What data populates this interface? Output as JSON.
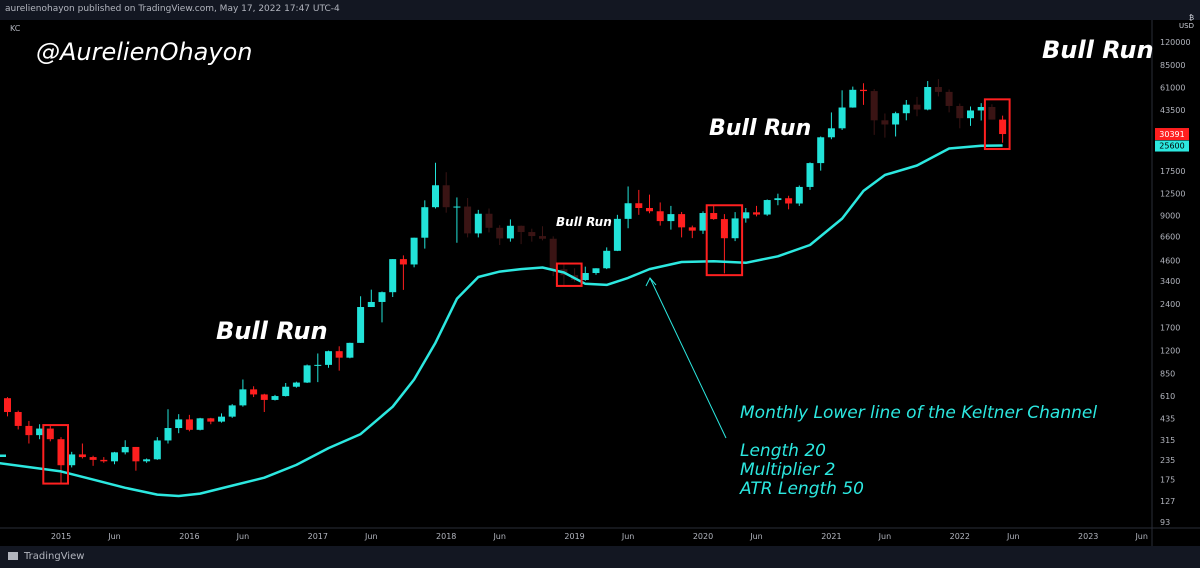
{
  "header": {
    "published": "aurelienohayon published on TradingView.com, May 17, 2022 17:47 UTC-4",
    "symbol": "KC"
  },
  "axis": {
    "currency_top": "₿",
    "currency": "USD"
  },
  "handle": "@AurelienOhayon",
  "annotations": {
    "top_right": "Bull Run",
    "run_2020": "Bull Run",
    "run_2019": "Bull Run",
    "run_2016": "Bull Run"
  },
  "keltner_note": {
    "line1": "Monthly Lower line of the Keltner Channel",
    "line2": "Length 20",
    "line3": "Multiplier 2",
    "line4": "ATR Length 50"
  },
  "footer": {
    "brand": "TradingView"
  },
  "colors": {
    "up": "#22e3d9",
    "down": "#ff1f1f",
    "faded_down": "#3a1414",
    "keltner_line": "#2ce8e0",
    "box": "#ff2020",
    "last_price_tag": "#ff1f1f",
    "keltner_tag": "#2ce8e0"
  },
  "chart_data": {
    "type": "candlestick",
    "scale": "log",
    "y_ticks": [
      120000,
      85000,
      61000,
      43500,
      30391,
      25600,
      17500,
      12500,
      9000,
      6600,
      4600,
      3400,
      2400,
      1700,
      1200,
      850,
      610,
      435,
      315,
      235,
      175,
      127,
      93
    ],
    "y_tick_labels": [
      "120000",
      "85000",
      "61000",
      "43500",
      "",
      "",
      "17500",
      "12500",
      "9000",
      "6600",
      "4600",
      "3400",
      "2400",
      "1700",
      "1200",
      "850",
      "610",
      "435",
      "315",
      "235",
      "175",
      "127",
      "93"
    ],
    "x_tick_labels": [
      "2015",
      "Jun",
      "2016",
      "Jun",
      "2017",
      "Jun",
      "2018",
      "Jun",
      "2019",
      "Jun",
      "2020",
      "Jun",
      "2021",
      "Jun",
      "2022",
      "Jun",
      "2023",
      "Jun"
    ],
    "x_tick_dates": [
      "2015-01",
      "2015-06",
      "2016-01",
      "2016-06",
      "2017-01",
      "2017-06",
      "2018-01",
      "2018-06",
      "2019-01",
      "2019-06",
      "2020-01",
      "2020-06",
      "2021-01",
      "2021-06",
      "2022-01",
      "2022-06",
      "2023-01",
      "2023-06"
    ],
    "last_price_label": "30391",
    "keltner_label": "25600",
    "candles": [
      {
        "date": "2014-06",
        "o": 640,
        "h": 680,
        "l": 560,
        "c": 600
      },
      {
        "date": "2014-07",
        "o": 600,
        "h": 640,
        "l": 570,
        "c": 590
      },
      {
        "date": "2014-08",
        "o": 590,
        "h": 600,
        "l": 450,
        "c": 480
      },
      {
        "date": "2014-09",
        "o": 480,
        "h": 490,
        "l": 370,
        "c": 390
      },
      {
        "date": "2014-10",
        "o": 390,
        "h": 420,
        "l": 300,
        "c": 340
      },
      {
        "date": "2014-11",
        "o": 340,
        "h": 400,
        "l": 320,
        "c": 375
      },
      {
        "date": "2014-12",
        "o": 375,
        "h": 390,
        "l": 310,
        "c": 320
      },
      {
        "date": "2015-01",
        "o": 320,
        "h": 330,
        "l": 165,
        "c": 217
      },
      {
        "date": "2015-02",
        "o": 217,
        "h": 265,
        "l": 210,
        "c": 255
      },
      {
        "date": "2015-03",
        "o": 255,
        "h": 300,
        "l": 240,
        "c": 245
      },
      {
        "date": "2015-04",
        "o": 245,
        "h": 250,
        "l": 215,
        "c": 235
      },
      {
        "date": "2015-05",
        "o": 235,
        "h": 245,
        "l": 225,
        "c": 230
      },
      {
        "date": "2015-06",
        "o": 230,
        "h": 265,
        "l": 220,
        "c": 263
      },
      {
        "date": "2015-07",
        "o": 263,
        "h": 315,
        "l": 255,
        "c": 285
      },
      {
        "date": "2015-08",
        "o": 285,
        "h": 285,
        "l": 200,
        "c": 230
      },
      {
        "date": "2015-09",
        "o": 230,
        "h": 240,
        "l": 225,
        "c": 237
      },
      {
        "date": "2015-10",
        "o": 237,
        "h": 330,
        "l": 235,
        "c": 314
      },
      {
        "date": "2015-11",
        "o": 314,
        "h": 500,
        "l": 300,
        "c": 378
      },
      {
        "date": "2015-12",
        "o": 378,
        "h": 465,
        "l": 350,
        "c": 430
      },
      {
        "date": "2016-01",
        "o": 430,
        "h": 460,
        "l": 360,
        "c": 368
      },
      {
        "date": "2016-02",
        "o": 368,
        "h": 440,
        "l": 365,
        "c": 437
      },
      {
        "date": "2016-03",
        "o": 437,
        "h": 440,
        "l": 400,
        "c": 416
      },
      {
        "date": "2016-04",
        "o": 416,
        "h": 470,
        "l": 410,
        "c": 448
      },
      {
        "date": "2016-05",
        "o": 448,
        "h": 540,
        "l": 440,
        "c": 530
      },
      {
        "date": "2016-06",
        "o": 530,
        "h": 780,
        "l": 520,
        "c": 673
      },
      {
        "date": "2016-07",
        "o": 673,
        "h": 705,
        "l": 600,
        "c": 624
      },
      {
        "date": "2016-08",
        "o": 624,
        "h": 630,
        "l": 480,
        "c": 575
      },
      {
        "date": "2016-09",
        "o": 575,
        "h": 620,
        "l": 570,
        "c": 609
      },
      {
        "date": "2016-10",
        "o": 609,
        "h": 740,
        "l": 605,
        "c": 700
      },
      {
        "date": "2016-11",
        "o": 700,
        "h": 755,
        "l": 690,
        "c": 745
      },
      {
        "date": "2016-12",
        "o": 745,
        "h": 975,
        "l": 740,
        "c": 963
      },
      {
        "date": "2017-01",
        "o": 963,
        "h": 1150,
        "l": 750,
        "c": 970
      },
      {
        "date": "2017-02",
        "o": 970,
        "h": 1200,
        "l": 930,
        "c": 1190
      },
      {
        "date": "2017-03",
        "o": 1190,
        "h": 1280,
        "l": 890,
        "c": 1080
      },
      {
        "date": "2017-04",
        "o": 1080,
        "h": 1350,
        "l": 1070,
        "c": 1347
      },
      {
        "date": "2017-05",
        "o": 1347,
        "h": 2700,
        "l": 1345,
        "c": 2300
      },
      {
        "date": "2017-06",
        "o": 2300,
        "h": 2980,
        "l": 2300,
        "c": 2480
      },
      {
        "date": "2017-07",
        "o": 2480,
        "h": 2900,
        "l": 1830,
        "c": 2870
      },
      {
        "date": "2017-08",
        "o": 2870,
        "h": 4700,
        "l": 2670,
        "c": 4700
      },
      {
        "date": "2017-09",
        "o": 4700,
        "h": 4970,
        "l": 2970,
        "c": 4340
      },
      {
        "date": "2017-10",
        "o": 4340,
        "h": 6470,
        "l": 4160,
        "c": 6470
      },
      {
        "date": "2017-11",
        "o": 6470,
        "h": 11300,
        "l": 5500,
        "c": 10200
      },
      {
        "date": "2017-12",
        "o": 10200,
        "h": 19800,
        "l": 10000,
        "c": 14150
      },
      {
        "date": "2018-01",
        "o": 14150,
        "h": 17200,
        "l": 9400,
        "c": 10200
      },
      {
        "date": "2018-02",
        "o": 10200,
        "h": 11800,
        "l": 6000,
        "c": 10300
      },
      {
        "date": "2018-03",
        "o": 10300,
        "h": 11700,
        "l": 6500,
        "c": 6900
      },
      {
        "date": "2018-04",
        "o": 6900,
        "h": 9800,
        "l": 6500,
        "c": 9250
      },
      {
        "date": "2018-05",
        "o": 9250,
        "h": 10000,
        "l": 7000,
        "c": 7500
      },
      {
        "date": "2018-06",
        "o": 7500,
        "h": 7800,
        "l": 5800,
        "c": 6400
      },
      {
        "date": "2018-07",
        "o": 6400,
        "h": 8500,
        "l": 6100,
        "c": 7730
      },
      {
        "date": "2018-08",
        "o": 7730,
        "h": 7760,
        "l": 5880,
        "c": 7040
      },
      {
        "date": "2018-09",
        "o": 7040,
        "h": 7400,
        "l": 6100,
        "c": 6630
      },
      {
        "date": "2018-10",
        "o": 6630,
        "h": 7680,
        "l": 6220,
        "c": 6370
      },
      {
        "date": "2018-11",
        "o": 6370,
        "h": 6600,
        "l": 3650,
        "c": 4040
      },
      {
        "date": "2018-12",
        "o": 4040,
        "h": 4360,
        "l": 3150,
        "c": 3700
      },
      {
        "date": "2019-01",
        "o": 3700,
        "h": 4100,
        "l": 3350,
        "c": 3440
      },
      {
        "date": "2019-02",
        "o": 3440,
        "h": 4200,
        "l": 3400,
        "c": 3820
      },
      {
        "date": "2019-03",
        "o": 3820,
        "h": 4100,
        "l": 3720,
        "c": 4100
      },
      {
        "date": "2019-04",
        "o": 4100,
        "h": 5600,
        "l": 4050,
        "c": 5320
      },
      {
        "date": "2019-05",
        "o": 5320,
        "h": 9100,
        "l": 5300,
        "c": 8570
      },
      {
        "date": "2019-06",
        "o": 8570,
        "h": 13900,
        "l": 7450,
        "c": 10820
      },
      {
        "date": "2019-07",
        "o": 10820,
        "h": 13200,
        "l": 9100,
        "c": 10080
      },
      {
        "date": "2019-08",
        "o": 10080,
        "h": 12300,
        "l": 9320,
        "c": 9600
      },
      {
        "date": "2019-09",
        "o": 9600,
        "h": 10950,
        "l": 7750,
        "c": 8290
      },
      {
        "date": "2019-10",
        "o": 8290,
        "h": 10400,
        "l": 7300,
        "c": 9200
      },
      {
        "date": "2019-11",
        "o": 9200,
        "h": 9500,
        "l": 6500,
        "c": 7550
      },
      {
        "date": "2019-12",
        "o": 7550,
        "h": 7750,
        "l": 6430,
        "c": 7190
      },
      {
        "date": "2020-01",
        "o": 7190,
        "h": 9580,
        "l": 6850,
        "c": 9350
      },
      {
        "date": "2020-02",
        "o": 9350,
        "h": 10500,
        "l": 8450,
        "c": 8540
      },
      {
        "date": "2020-03",
        "o": 8540,
        "h": 9200,
        "l": 3800,
        "c": 6420
      },
      {
        "date": "2020-04",
        "o": 6420,
        "h": 9480,
        "l": 6150,
        "c": 8630
      },
      {
        "date": "2020-05",
        "o": 8630,
        "h": 10080,
        "l": 8100,
        "c": 9450
      },
      {
        "date": "2020-06",
        "o": 9450,
        "h": 10400,
        "l": 8900,
        "c": 9140
      },
      {
        "date": "2020-07",
        "o": 9140,
        "h": 11450,
        "l": 8970,
        "c": 11350
      },
      {
        "date": "2020-08",
        "o": 11350,
        "h": 12480,
        "l": 10500,
        "c": 11660
      },
      {
        "date": "2020-09",
        "o": 11660,
        "h": 12100,
        "l": 9880,
        "c": 10780
      },
      {
        "date": "2020-10",
        "o": 10780,
        "h": 14100,
        "l": 10400,
        "c": 13800
      },
      {
        "date": "2020-11",
        "o": 13800,
        "h": 19900,
        "l": 13200,
        "c": 19700
      },
      {
        "date": "2020-12",
        "o": 19700,
        "h": 29300,
        "l": 17600,
        "c": 28950
      },
      {
        "date": "2021-01",
        "o": 28950,
        "h": 41950,
        "l": 28130,
        "c": 33100
      },
      {
        "date": "2021-02",
        "o": 33100,
        "h": 58350,
        "l": 32300,
        "c": 45140
      },
      {
        "date": "2021-03",
        "o": 45140,
        "h": 61700,
        "l": 45000,
        "c": 58800
      },
      {
        "date": "2021-04",
        "o": 58800,
        "h": 64850,
        "l": 47000,
        "c": 57700
      },
      {
        "date": "2021-05",
        "o": 57700,
        "h": 59500,
        "l": 30000,
        "c": 37300
      },
      {
        "date": "2021-06",
        "o": 37300,
        "h": 41300,
        "l": 28800,
        "c": 35040
      },
      {
        "date": "2021-07",
        "o": 35040,
        "h": 42400,
        "l": 29300,
        "c": 41460
      },
      {
        "date": "2021-08",
        "o": 41460,
        "h": 50500,
        "l": 37300,
        "c": 47100
      },
      {
        "date": "2021-09",
        "o": 47100,
        "h": 52900,
        "l": 39600,
        "c": 43800
      },
      {
        "date": "2021-10",
        "o": 43800,
        "h": 67000,
        "l": 43300,
        "c": 61300
      },
      {
        "date": "2021-11",
        "o": 61300,
        "h": 69000,
        "l": 53300,
        "c": 57000
      },
      {
        "date": "2021-12",
        "o": 57000,
        "h": 59100,
        "l": 42000,
        "c": 46200
      },
      {
        "date": "2022-01",
        "o": 46200,
        "h": 47900,
        "l": 33100,
        "c": 38500
      },
      {
        "date": "2022-02",
        "o": 38500,
        "h": 45800,
        "l": 34300,
        "c": 43200
      },
      {
        "date": "2022-03",
        "o": 43200,
        "h": 48200,
        "l": 37200,
        "c": 45500
      },
      {
        "date": "2022-04",
        "o": 45500,
        "h": 47450,
        "l": 37700,
        "c": 37700
      },
      {
        "date": "2022-05",
        "o": 37700,
        "h": 40000,
        "l": 26700,
        "c": 30391
      }
    ],
    "keltner_lower": [
      {
        "date": "2014-01",
        "v": 250
      },
      {
        "date": "2014-07",
        "v": 225
      },
      {
        "date": "2015-01",
        "v": 198
      },
      {
        "date": "2015-04",
        "v": 175
      },
      {
        "date": "2015-07",
        "v": 155
      },
      {
        "date": "2015-10",
        "v": 140
      },
      {
        "date": "2015-12",
        "v": 137
      },
      {
        "date": "2016-02",
        "v": 142
      },
      {
        "date": "2016-05",
        "v": 160
      },
      {
        "date": "2016-08",
        "v": 180
      },
      {
        "date": "2016-11",
        "v": 218
      },
      {
        "date": "2017-02",
        "v": 280
      },
      {
        "date": "2017-05",
        "v": 345
      },
      {
        "date": "2017-08",
        "v": 520
      },
      {
        "date": "2017-10",
        "v": 780
      },
      {
        "date": "2017-12",
        "v": 1350
      },
      {
        "date": "2018-02",
        "v": 2600
      },
      {
        "date": "2018-04",
        "v": 3600
      },
      {
        "date": "2018-06",
        "v": 3900
      },
      {
        "date": "2018-08",
        "v": 4050
      },
      {
        "date": "2018-10",
        "v": 4150
      },
      {
        "date": "2018-12",
        "v": 3850
      },
      {
        "date": "2019-02",
        "v": 3250
      },
      {
        "date": "2019-04",
        "v": 3200
      },
      {
        "date": "2019-06",
        "v": 3550
      },
      {
        "date": "2019-08",
        "v": 4050
      },
      {
        "date": "2019-11",
        "v": 4500
      },
      {
        "date": "2020-02",
        "v": 4550
      },
      {
        "date": "2020-05",
        "v": 4450
      },
      {
        "date": "2020-08",
        "v": 4900
      },
      {
        "date": "2020-11",
        "v": 5800
      },
      {
        "date": "2021-02",
        "v": 8600
      },
      {
        "date": "2021-04",
        "v": 13000
      },
      {
        "date": "2021-06",
        "v": 16500
      },
      {
        "date": "2021-09",
        "v": 19000
      },
      {
        "date": "2021-12",
        "v": 24500
      },
      {
        "date": "2022-03",
        "v": 25500
      },
      {
        "date": "2022-05",
        "v": 25600
      }
    ],
    "highlight_boxes": [
      {
        "from": "2014-12",
        "to": "2015-01",
        "low": 165,
        "high": 395
      },
      {
        "from": "2018-12",
        "to": "2019-01",
        "low": 3150,
        "high": 4400
      },
      {
        "from": "2020-02",
        "to": "2020-04",
        "low": 3700,
        "high": 10500
      },
      {
        "from": "2022-04",
        "to": "2022-05",
        "low": 24300,
        "high": 51000
      }
    ],
    "faded_range": {
      "from": "2018-01",
      "to": "2019-06",
      "also_from": "2021-05",
      "also_to": "2022-04"
    }
  }
}
